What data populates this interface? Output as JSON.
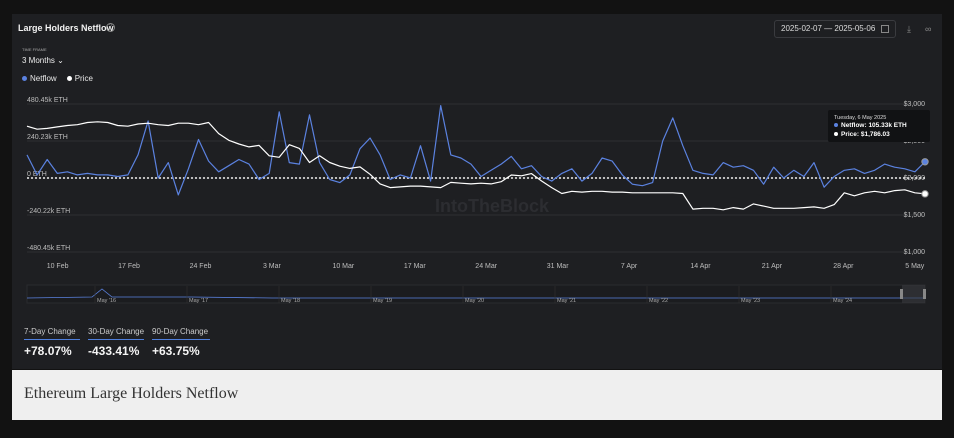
{
  "header": {
    "title": "Large Holders Netflow",
    "time_frame_label": "TIME FRAME",
    "time_frame_value": "3 Months ⌄",
    "date_start": "2025-02-07",
    "date_sep": "—",
    "date_end": "2025-05-06"
  },
  "legend": [
    {
      "label": "Netflow",
      "color": "#5b82e0"
    },
    {
      "label": "Price",
      "color": "#ffffff"
    }
  ],
  "tooltip": {
    "date": "Tuesday, 6 May 2025",
    "netflow": "Netflow: 105.33k ETH",
    "price": "Price: $1,786.03"
  },
  "watermark": "IntoTheBlock",
  "chart_data": {
    "type": "line",
    "title": "Large Holders Netflow",
    "x_tick_labels": [
      "10 Feb",
      "17 Feb",
      "24 Feb",
      "3 Mar",
      "10 Mar",
      "17 Mar",
      "24 Mar",
      "31 Mar",
      "7 Apr",
      "14 Apr",
      "21 Apr",
      "28 Apr",
      "5 May"
    ],
    "x_start": "2025-02-07",
    "x_end": "2025-05-06",
    "left_axis": {
      "unit": "ETH",
      "ticks": [
        "480.45k ETH",
        "240.23k ETH",
        "0 ETH",
        "-240.22k ETH",
        "-480.45k ETH"
      ],
      "range": [
        -480450,
        480450
      ]
    },
    "right_axis": {
      "unit": "USD",
      "ticks": [
        "$3,000",
        "$2,500",
        "$2,000",
        "$1,500",
        "$1,000"
      ],
      "range": [
        1000,
        3000
      ]
    },
    "grid": true,
    "series": [
      {
        "name": "Netflow",
        "axis": "left",
        "color": "#5b82e0",
        "values": [
          150000,
          20000,
          120000,
          30000,
          40000,
          20000,
          30000,
          20000,
          20000,
          10000,
          20000,
          150000,
          370000,
          0,
          100000,
          -110000,
          60000,
          250000,
          110000,
          40000,
          80000,
          120000,
          90000,
          -10000,
          30000,
          430000,
          100000,
          90000,
          410000,
          100000,
          -10000,
          -30000,
          20000,
          190000,
          260000,
          150000,
          -10000,
          20000,
          0,
          210000,
          -20000,
          470000,
          150000,
          130000,
          90000,
          10000,
          50000,
          90000,
          140000,
          60000,
          80000,
          10000,
          -20000,
          30000,
          60000,
          -20000,
          30000,
          130000,
          110000,
          20000,
          -40000,
          -50000,
          -30000,
          240000,
          390000,
          210000,
          50000,
          30000,
          20000,
          100000,
          70000,
          80000,
          50000,
          -40000,
          70000,
          0,
          50000,
          10000,
          100000,
          -60000,
          10000,
          50000,
          60000,
          30000,
          50000,
          90000,
          70000,
          60000,
          40000,
          105330
        ]
      },
      {
        "name": "Price",
        "axis": "right",
        "color": "#ffffff",
        "values": [
          2700,
          2660,
          2670,
          2690,
          2710,
          2720,
          2750,
          2760,
          2750,
          2710,
          2700,
          2730,
          2740,
          2720,
          2710,
          2740,
          2740,
          2720,
          2750,
          2600,
          2510,
          2460,
          2420,
          2440,
          2300,
          2280,
          2450,
          2400,
          2210,
          2300,
          2210,
          2160,
          2130,
          2150,
          2050,
          1920,
          1870,
          1880,
          1890,
          1890,
          1880,
          1870,
          1940,
          1930,
          1920,
          1930,
          1920,
          1950,
          2040,
          2030,
          2060,
          1960,
          1870,
          1790,
          1820,
          1810,
          1820,
          1820,
          1810,
          1810,
          1800,
          1800,
          1800,
          1800,
          1800,
          1790,
          1580,
          1590,
          1590,
          1570,
          1600,
          1580,
          1650,
          1620,
          1590,
          1590,
          1590,
          1600,
          1610,
          1590,
          1640,
          1800,
          1760,
          1800,
          1820,
          1800,
          1830,
          1840,
          1800,
          1786
        ]
      }
    ]
  },
  "navigator": {
    "labels": [
      "May '16",
      "May '17",
      "May '18",
      "May '19",
      "May '20",
      "May '21",
      "May '22",
      "May '23",
      "May '24"
    ]
  },
  "cards": [
    {
      "label": "7-Day Change",
      "value": "+78.07%"
    },
    {
      "label": "30-Day Change",
      "value": "-433.41%"
    },
    {
      "label": "90-Day Change",
      "value": "+63.75%"
    }
  ],
  "caption": "Ethereum Large Holders Netflow"
}
